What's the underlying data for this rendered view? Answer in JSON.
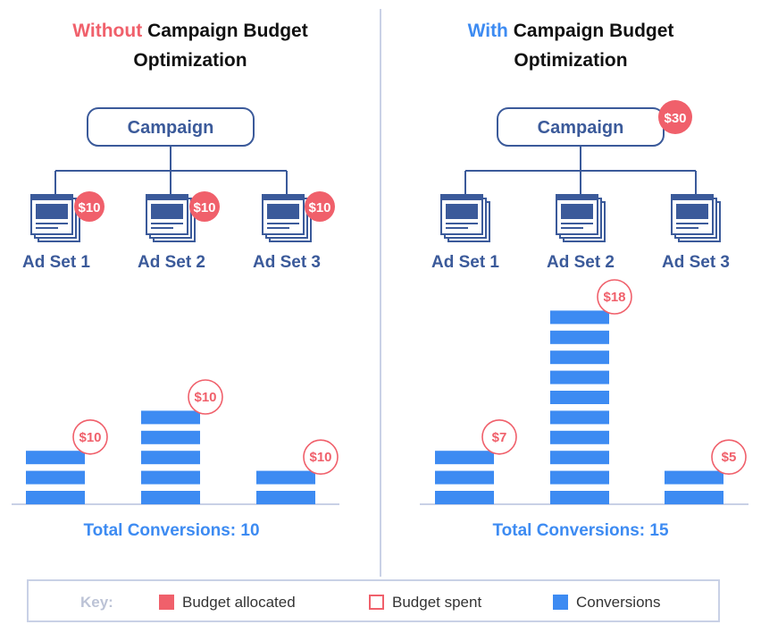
{
  "left": {
    "title_highlight": "Without",
    "title_rest": "Campaign Budget",
    "title_line2": "Optimization",
    "campaign_label": "Campaign",
    "ad_sets": [
      {
        "label": "Ad Set 1",
        "budget": "$10"
      },
      {
        "label": "Ad Set 2",
        "budget": "$10"
      },
      {
        "label": "Ad Set 3",
        "budget": "$10"
      }
    ],
    "total": "Total Conversions: 10"
  },
  "right": {
    "title_highlight": "With",
    "title_rest": "Campaign Budget",
    "title_line2": "Optimization",
    "campaign_label": "Campaign",
    "campaign_budget": "$30",
    "ad_sets": [
      {
        "label": "Ad Set 1"
      },
      {
        "label": "Ad Set 2"
      },
      {
        "label": "Ad Set 3"
      }
    ],
    "total": "Total Conversions: 15"
  },
  "chart_data": [
    {
      "type": "bar",
      "categories": [
        "Ad Set 1",
        "Ad Set 2",
        "Ad Set 3"
      ],
      "values": [
        3,
        5,
        2
      ],
      "spend_labels": [
        "$10",
        "$10",
        "$10"
      ]
    },
    {
      "type": "bar",
      "categories": [
        "Ad Set 1",
        "Ad Set 2",
        "Ad Set 3"
      ],
      "values": [
        3,
        10,
        2
      ],
      "spend_labels": [
        "$7",
        "$18",
        "$5"
      ]
    }
  ],
  "key": {
    "title": "Key:",
    "items": [
      {
        "label": "Budget allocated"
      },
      {
        "label": "Budget spent"
      },
      {
        "label": "Conversions"
      }
    ]
  },
  "colors": {
    "red": "#f0606b",
    "blue": "#3d8bf2",
    "navy": "#3b5a9a",
    "key_border": "#c9d1e6"
  }
}
